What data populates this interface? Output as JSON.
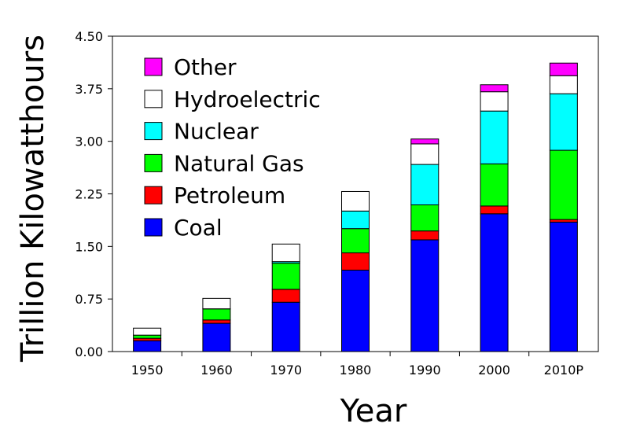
{
  "chart_data": {
    "type": "bar",
    "stacked": true,
    "title": "",
    "xlabel": "Year",
    "ylabel": "Trillion Kilowatthours",
    "ylim": [
      0,
      4.5
    ],
    "yticks": [
      "0.00",
      "0.75",
      "1.50",
      "2.25",
      "3.00",
      "3.75",
      "4.50"
    ],
    "categories": [
      "1950",
      "1960",
      "1970",
      "1980",
      "1990",
      "2000",
      "2010P"
    ],
    "legend_position": "top-left",
    "grid": false,
    "series": [
      {
        "name": "Coal",
        "color": "#0000ff",
        "values": [
          0.155,
          0.403,
          0.704,
          1.162,
          1.594,
          1.966,
          1.847
        ]
      },
      {
        "name": "Petroleum",
        "color": "#ff0000",
        "values": [
          0.034,
          0.048,
          0.184,
          0.246,
          0.127,
          0.111,
          0.037
        ]
      },
      {
        "name": "Natural Gas",
        "color": "#00ff00",
        "values": [
          0.045,
          0.158,
          0.373,
          0.346,
          0.372,
          0.601,
          0.988
        ]
      },
      {
        "name": "Nuclear",
        "color": "#00ffff",
        "values": [
          0.0,
          0.001,
          0.022,
          0.251,
          0.577,
          0.754,
          0.807
        ]
      },
      {
        "name": "Hydroelectric",
        "color": "#ffffff",
        "values": [
          0.1,
          0.149,
          0.251,
          0.279,
          0.293,
          0.275,
          0.257
        ]
      },
      {
        "name": "Other",
        "color": "#ff00ff",
        "values": [
          0.0,
          0.0,
          0.0,
          0.0,
          0.07,
          0.1,
          0.18
        ]
      }
    ]
  }
}
